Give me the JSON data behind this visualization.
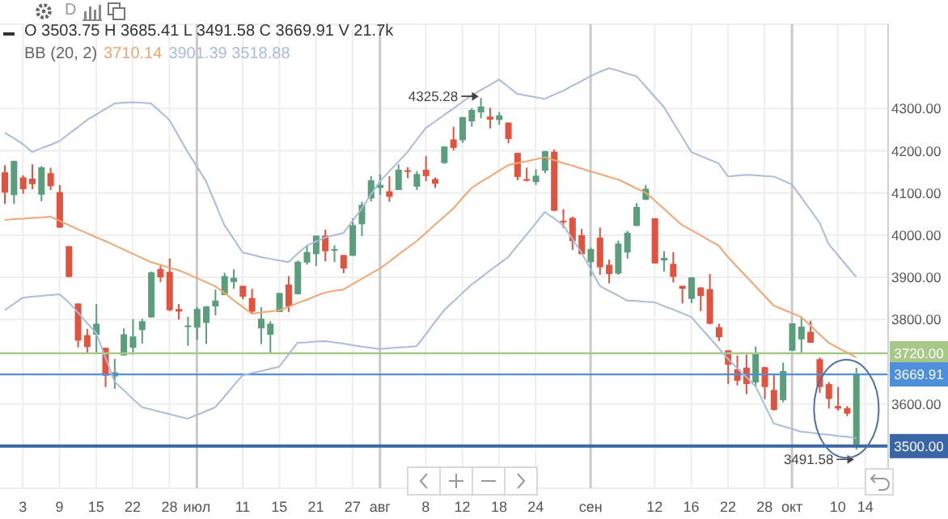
{
  "chart_data": {
    "type": "candlestick",
    "categories": [
      null,
      null,
      "3",
      null,
      null,
      null,
      "9",
      null,
      null,
      null,
      "15",
      null,
      null,
      null,
      "22",
      null,
      null,
      null,
      "28",
      null,
      null,
      "июл",
      null,
      null,
      null,
      null,
      "11",
      null,
      null,
      null,
      "15",
      null,
      null,
      null,
      "21",
      null,
      null,
      null,
      "27",
      null,
      null,
      "авг",
      null,
      null,
      null,
      null,
      "8",
      null,
      null,
      null,
      "12",
      null,
      null,
      null,
      "18",
      null,
      null,
      null,
      "24",
      null,
      null,
      null,
      null,
      null,
      "сен",
      null,
      null,
      null,
      null,
      null,
      null,
      "12",
      null,
      null,
      null,
      "16",
      null,
      null,
      null,
      "22",
      null,
      null,
      null,
      "28",
      null,
      null,
      "окт",
      null,
      null,
      null,
      null,
      "10",
      null,
      null,
      "14",
      null,
      null
    ],
    "ohlc": [
      [
        4149,
        4166,
        4074,
        4101
      ],
      [
        4095,
        4177,
        4074,
        4176
      ],
      [
        4137,
        4142,
        4098,
        4109
      ],
      [
        4134,
        4168,
        4109,
        4121
      ],
      [
        4096,
        4164,
        4080,
        4161
      ],
      [
        4147,
        4160,
        4107,
        4116
      ],
      [
        4102,
        4119,
        4017,
        4018
      ],
      [
        3974,
        3974,
        3900,
        3901
      ],
      [
        3838,
        3838,
        3734,
        3750
      ],
      [
        3763,
        3778,
        3722,
        3735
      ],
      [
        3764,
        3837,
        3722,
        3790
      ],
      [
        3733,
        3733,
        3640,
        3667
      ],
      [
        3665,
        3707,
        3636,
        3675
      ],
      [
        3715,
        3779,
        3715,
        3765
      ],
      [
        3733,
        3801,
        3717,
        3760
      ],
      [
        3775,
        3802,
        3743,
        3796
      ],
      [
        3805,
        3914,
        3805,
        3912
      ],
      [
        3920,
        3928,
        3889,
        3900
      ],
      [
        3913,
        3945,
        3820,
        3822
      ],
      [
        3825,
        3837,
        3800,
        3819
      ],
      [
        3785,
        3807,
        3738,
        3786
      ],
      [
        3781,
        3829,
        3752,
        3825
      ],
      [
        3792,
        3832,
        3742,
        3831
      ],
      [
        3831,
        3871,
        3810,
        3845
      ],
      [
        3858,
        3911,
        3858,
        3903
      ],
      [
        3889,
        3919,
        3873,
        3899
      ],
      [
        3880,
        3880,
        3848,
        3854
      ],
      [
        3851,
        3873,
        3812,
        3819
      ],
      [
        3779,
        3829,
        3742,
        3802
      ],
      [
        3764,
        3796,
        3722,
        3790
      ],
      [
        3818,
        3863,
        3818,
        3863
      ],
      [
        3883,
        3903,
        3818,
        3831
      ],
      [
        3860,
        3940,
        3860,
        3937
      ],
      [
        3935,
        3975,
        3930,
        3960
      ],
      [
        3955,
        3999,
        3927,
        3999
      ],
      [
        3999,
        4013,
        3938,
        3962
      ],
      [
        3965,
        3976,
        3936,
        3967
      ],
      [
        3953,
        3953,
        3910,
        3921
      ],
      [
        3951,
        4040,
        3951,
        4024
      ],
      [
        4026,
        4079,
        3998,
        4072
      ],
      [
        4087,
        4140,
        4080,
        4130
      ],
      [
        4112,
        4144,
        4096,
        4119
      ],
      [
        4104,
        4140,
        4079,
        4091
      ],
      [
        4107,
        4168,
        4107,
        4155
      ],
      [
        4154,
        4161,
        4135,
        4152
      ],
      [
        4115,
        4152,
        4107,
        4145
      ],
      [
        4155,
        4187,
        4128,
        4140
      ],
      [
        4133,
        4137,
        4112,
        4122
      ],
      [
        4171,
        4211,
        4169,
        4210
      ],
      [
        4227,
        4257,
        4201,
        4207
      ],
      [
        4225,
        4280,
        4219,
        4280
      ],
      [
        4270,
        4301,
        4257,
        4297
      ],
      [
        4291,
        4325.28,
        4277,
        4305
      ],
      [
        4281,
        4302,
        4253,
        4274
      ],
      [
        4273,
        4292,
        4262,
        4284
      ],
      [
        4267,
        4267,
        4218,
        4228
      ],
      [
        4195,
        4195,
        4130,
        4138
      ],
      [
        4133,
        4160,
        4127,
        4129
      ],
      [
        4126,
        4156,
        4119,
        4141
      ],
      [
        4153,
        4200,
        4147,
        4199
      ],
      [
        4198,
        4203,
        4057,
        4058
      ],
      [
        4034,
        4062,
        4017,
        4031
      ],
      [
        4041,
        4044,
        3965,
        3986
      ],
      [
        4000,
        4015,
        3954,
        3955
      ],
      [
        3936,
        3970,
        3903,
        3967
      ],
      [
        3994,
        4018,
        3906,
        3924
      ],
      [
        3930,
        3942,
        3886,
        3908
      ],
      [
        3909,
        3987,
        3906,
        3980
      ],
      [
        3959,
        4010,
        3944,
        4006
      ],
      [
        4022,
        4076,
        4022,
        4067
      ],
      [
        4084,
        4119,
        4083,
        4110
      ],
      [
        4040,
        4040,
        3933,
        3933
      ],
      [
        3940,
        3962,
        3914,
        3946
      ],
      [
        3932,
        3960,
        3888,
        3901
      ],
      [
        3880,
        3880,
        3838,
        3873
      ],
      [
        3849,
        3901,
        3839,
        3900
      ],
      [
        3876,
        3877,
        3820,
        3856
      ],
      [
        3872,
        3908,
        3789,
        3790
      ],
      [
        3782,
        3790,
        3749,
        3758
      ],
      [
        3727,
        3727,
        3647,
        3693
      ],
      [
        3682,
        3715,
        3644,
        3655
      ],
      [
        3686,
        3717,
        3623,
        3647
      ],
      [
        3651,
        3736,
        3640,
        3719
      ],
      [
        3687,
        3688,
        3611,
        3640
      ],
      [
        3633,
        3671,
        3584,
        3586
      ],
      [
        3609,
        3698,
        3604,
        3678
      ],
      [
        3726,
        3791,
        3726,
        3791
      ],
      [
        3753,
        3807,
        3722,
        3783
      ],
      [
        3771,
        3797,
        3745,
        3745
      ],
      [
        3706,
        3710,
        3626,
        3640
      ],
      [
        3647,
        3652,
        3589,
        3612
      ],
      [
        3595,
        3640,
        3584,
        3589
      ],
      [
        3590,
        3595,
        3571,
        3577
      ],
      [
        3503.75,
        3685.41,
        3491.58,
        3669.91
      ],
      null,
      null,
      null
    ],
    "colors": [
      "#e0533f",
      "#5b9e7c",
      "#e0533f",
      "#e0533f",
      "#5b9e7c",
      "#e0533f",
      "#e0533f",
      "#e0533f",
      "#e0533f",
      "#e0533f",
      "#5b9e7c",
      "#e0533f",
      "#5b9e7c",
      "#5b9e7c",
      "#5b9e7c",
      "#5b9e7c",
      "#5b9e7c",
      "#e0533f",
      "#e0533f",
      "#e0533f",
      "#5b9e7c",
      "#5b9e7c",
      "#5b9e7c",
      "#5b9e7c",
      "#5b9e7c",
      "#5b9e7c",
      "#e0533f",
      "#e0533f",
      "#5b9e7c",
      "#5b9e7c",
      "#5b9e7c",
      "#e0533f",
      "#5b9e7c",
      "#5b9e7c",
      "#5b9e7c",
      "#e0533f",
      "#5b9e7c",
      "#e0533f",
      "#5b9e7c",
      "#5b9e7c",
      "#5b9e7c",
      "#5b9e7c",
      "#e0533f",
      "#5b9e7c",
      "#e0533f",
      "#5b9e7c",
      "#e0533f",
      "#e0533f",
      "#5b9e7c",
      "#e0533f",
      "#5b9e7c",
      "#5b9e7c",
      "#5b9e7c",
      "#e0533f",
      "#5b9e7c",
      "#e0533f",
      "#e0533f",
      "#e0533f",
      "#5b9e7c",
      "#5b9e7c",
      "#e0533f",
      "#e0533f",
      "#e0533f",
      "#e0533f",
      "#5b9e7c",
      "#e0533f",
      "#e0533f",
      "#5b9e7c",
      "#5b9e7c",
      "#5b9e7c",
      "#5b9e7c",
      "#e0533f",
      "#5b9e7c",
      "#e0533f",
      "#e0533f",
      "#5b9e7c",
      "#e0533f",
      "#e0533f",
      "#e0533f",
      "#e0533f",
      "#e0533f",
      "#e0533f",
      "#5b9e7c",
      "#e0533f",
      "#e0533f",
      "#5b9e7c",
      "#5b9e7c",
      "#5b9e7c",
      "#e0533f",
      "#e0533f",
      "#e0533f",
      "#e0533f",
      "#e0533f",
      "#5b9e7c",
      null,
      null,
      null
    ],
    "series": [
      {
        "type": "line",
        "color": "#f2a673",
        "values": [
          4036,
          4038,
          4039,
          4041,
          4042,
          4044,
          4034,
          4024,
          4014,
          4005,
          3995,
          3986,
          3976,
          3966,
          3956,
          3946,
          3936,
          3930,
          3923,
          3917,
          3908,
          3898,
          3889,
          3879,
          3863,
          3846,
          3830,
          3814,
          3817,
          3819,
          3822,
          3830,
          3839,
          3847,
          3856,
          3864,
          3868,
          3871,
          3884,
          3896,
          3909,
          3921,
          3937,
          3954,
          3970,
          3986,
          4005,
          4025,
          4044,
          4063,
          4088,
          4112,
          4126,
          4139,
          4153,
          4166,
          4171,
          4175,
          4180,
          4185,
          4178,
          4171,
          4165,
          4158,
          4151,
          4145,
          4138,
          4132,
          4122,
          4111,
          4101,
          4082,
          4063,
          4043,
          4024,
          4012,
          4000,
          3987,
          3975,
          3948,
          3925,
          3902,
          3879,
          3856,
          3833,
          3824,
          3815,
          3806,
          3786,
          3765,
          3745,
          3733,
          3722,
          3710,
          null,
          null,
          null
        ]
      },
      {
        "type": "line",
        "color": "#aabcdc",
        "values": [
          4243,
          4230,
          4216,
          4197,
          4206,
          4214,
          4223,
          4240,
          4256,
          4273,
          4286,
          4299,
          4312,
          4314,
          4315,
          4314,
          4312,
          4293,
          4273,
          4235,
          4197,
          4163,
          4128,
          4076,
          4024,
          3992,
          3959,
          3954,
          3948,
          3944,
          3940,
          3936,
          3956,
          3975,
          3985,
          3994,
          4000,
          4005,
          4034,
          4063,
          4096,
          4128,
          4151,
          4174,
          4197,
          4226,
          4254,
          4269,
          4285,
          4300,
          4316,
          4331,
          4344,
          4356,
          4369,
          4352,
          4335,
          4331,
          4327,
          4323,
          4333,
          4342,
          4354,
          4365,
          4377,
          4387,
          4396,
          4390,
          4383,
          4377,
          4353,
          4328,
          4304,
          4268,
          4233,
          4197,
          4188,
          4179,
          4170,
          4139,
          4141,
          4143,
          4142,
          4140,
          4139,
          4130,
          4120,
          4090,
          4060,
          4030,
          3979,
          3953,
          3927,
          3901,
          null,
          null,
          null
        ]
      },
      {
        "type": "line",
        "color": "#aabcdc",
        "values": [
          3822,
          3837,
          3852,
          3854,
          3856,
          3858,
          3860,
          3841,
          3817,
          3792,
          3768,
          3711,
          3653,
          3633,
          3612,
          3592,
          3587,
          3581,
          3576,
          3570,
          3565,
          3574,
          3583,
          3592,
          3617,
          3643,
          3668,
          3673,
          3678,
          3683,
          3688,
          3717,
          3745,
          3746,
          3748,
          3749,
          3746,
          3743,
          3739,
          3736,
          3733,
          3730,
          3732,
          3734,
          3735,
          3737,
          3765,
          3794,
          3822,
          3842,
          3863,
          3883,
          3899,
          3916,
          3932,
          3948,
          3975,
          4001,
          4028,
          4055,
          4040,
          4024,
          3992,
          3959,
          3920,
          3880,
          3868,
          3857,
          3845,
          3844,
          3842,
          3841,
          3832,
          3824,
          3815,
          3806,
          3781,
          3757,
          3732,
          3707,
          3685,
          3664,
          3642,
          3598,
          3554,
          3547,
          3541,
          3534,
          3532,
          3529,
          3527,
          3524,
          3522,
          3519,
          null,
          null,
          null
        ]
      }
    ],
    "ylim": [
      3400,
      4500
    ],
    "yticks": [
      {
        "value": 3600,
        "label": "3600.00"
      },
      {
        "value": 3800,
        "label": "3800.00"
      },
      {
        "value": 3900,
        "label": "3900.00"
      },
      {
        "value": 4000,
        "label": "4000.00"
      },
      {
        "value": 4100,
        "label": "4100.00"
      },
      {
        "value": 4200,
        "label": "4200.00"
      },
      {
        "value": 4300,
        "label": "4300.00"
      }
    ],
    "grid": true,
    "marker": "none",
    "ref_lines": [
      {
        "axis": "y",
        "value": 3720,
        "label": "3720.00",
        "color": "#a8c88a"
      },
      {
        "axis": "y",
        "value": 3669.91,
        "label": "3669.91",
        "color": "#4d8fdb"
      },
      {
        "axis": "y",
        "value": 3500,
        "label": "3500.00",
        "color": "#3a66a5"
      }
    ],
    "annotations": [
      "D",
      "O 3503.75 H 3685.41 L 3491.58 C 3669.91 V 21.7k",
      "BB (20, 2)",
      "3710.14",
      "3901.39 3518.88",
      "4325.28",
      "3491.58"
    ]
  }
}
